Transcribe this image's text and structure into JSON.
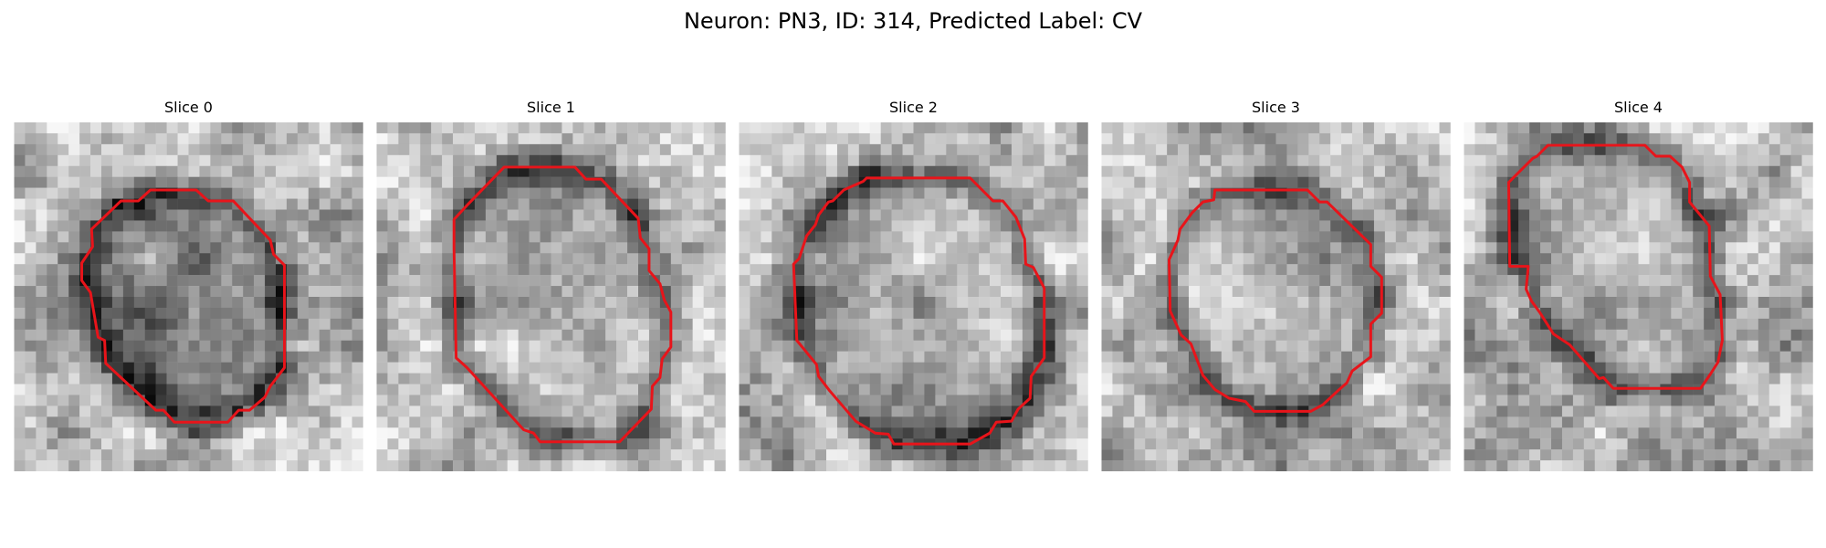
{
  "figure": {
    "title": "Neuron: PN3, ID: 314, Predicted Label: CV",
    "contour_color": "#e8141a"
  },
  "panels": [
    {
      "title": "Slice 0"
    },
    {
      "title": "Slice 1"
    },
    {
      "title": "Slice 2"
    },
    {
      "title": "Slice 3"
    },
    {
      "title": "Slice 4"
    }
  ]
}
